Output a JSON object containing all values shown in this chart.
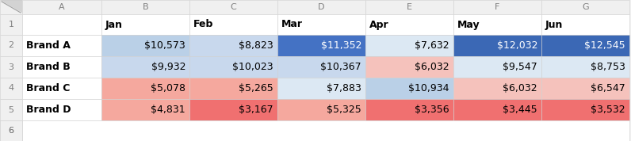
{
  "months": [
    "Jan",
    "Feb",
    "Mar",
    "Apr",
    "May",
    "Jun"
  ],
  "brands": [
    "Brand A",
    "Brand B",
    "Brand C",
    "Brand D"
  ],
  "values": [
    [
      10573,
      8823,
      11352,
      7632,
      12032,
      12545
    ],
    [
      9932,
      10023,
      10367,
      6032,
      9547,
      8753
    ],
    [
      5078,
      5265,
      7883,
      10934,
      6032,
      6547
    ],
    [
      4831,
      3167,
      5325,
      3356,
      3445,
      3532
    ]
  ],
  "cell_colors": [
    [
      "#bad0e7",
      "#c8d8ed",
      "#4472c4",
      "#dce8f3",
      "#3b68b5",
      "#3b68b5"
    ],
    [
      "#c8d8ed",
      "#c8d8ed",
      "#c8d8ed",
      "#f5c2bc",
      "#dce8f3",
      "#dce8f3"
    ],
    [
      "#f5a89e",
      "#f5a89e",
      "#dce8f3",
      "#bad0e7",
      "#f5c2bc",
      "#f5c2bc"
    ],
    [
      "#f5a89e",
      "#f07070",
      "#f5a89e",
      "#f07070",
      "#f07070",
      "#f07070"
    ]
  ],
  "text_colors": [
    [
      "#000000",
      "#000000",
      "#ffffff",
      "#000000",
      "#ffffff",
      "#ffffff"
    ],
    [
      "#000000",
      "#000000",
      "#000000",
      "#000000",
      "#000000",
      "#000000"
    ],
    [
      "#000000",
      "#000000",
      "#000000",
      "#000000",
      "#000000",
      "#000000"
    ],
    [
      "#000000",
      "#000000",
      "#000000",
      "#000000",
      "#000000",
      "#000000"
    ]
  ],
  "col_letters": [
    "A",
    "B",
    "C",
    "D",
    "E",
    "F",
    "G"
  ],
  "excel_bg": "#f0f0f0",
  "cell_bg": "#ffffff",
  "header_bg": "#f0f0f0",
  "header_text": "#808080",
  "border_color": "#d0d0d0",
  "fig_width": 7.96,
  "fig_height": 1.78,
  "dpi": 100
}
